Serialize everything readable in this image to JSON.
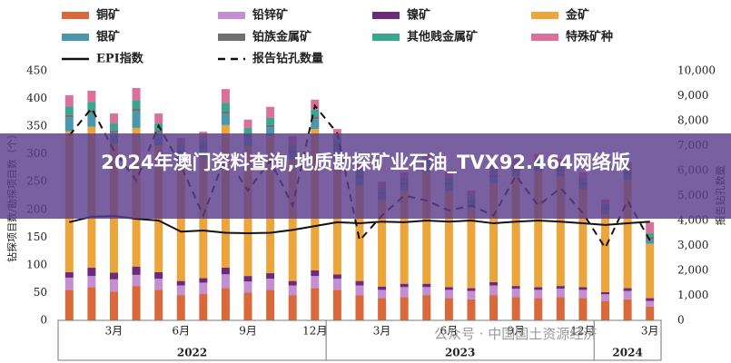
{
  "banner": "2024年澳门资料查询,地质勘探矿业石油_TVX92.464网络版",
  "watermark": "公众号 · 中国国土资源经济",
  "chart_data": {
    "type": "bar",
    "stacked": true,
    "ylabel": "钻探项目数/勘探项目数（个）",
    "y2label": "报告钻孔数量",
    "categories": [
      null,
      null,
      "3月",
      null,
      null,
      "6月",
      null,
      null,
      "9月",
      null,
      null,
      "12月",
      null,
      null,
      "3月",
      null,
      null,
      "6月",
      null,
      null,
      "9月",
      null,
      null,
      "12月",
      null,
      null,
      "3月"
    ],
    "x_groups": [
      {
        "label": "2022",
        "size": 12
      },
      {
        "label": "2023",
        "size": 12
      },
      {
        "label": "2024",
        "size": 3
      }
    ],
    "ylim": [
      0,
      450
    ],
    "yticks": [
      0,
      50,
      100,
      150,
      200,
      250,
      300,
      350,
      400,
      450
    ],
    "y2lim": [
      0,
      10000
    ],
    "y2ticks": [
      0,
      {
        "value": 1000,
        "label": "1,000"
      },
      {
        "value": 2000,
        "label": "2,000"
      },
      {
        "value": 3000,
        "label": "3,000"
      },
      {
        "value": 4000,
        "label": "4,000"
      },
      {
        "value": 5000,
        "label": "5,000"
      },
      {
        "value": 6000,
        "label": "6,000"
      },
      {
        "value": 7000,
        "label": "7,000"
      },
      {
        "value": 8000,
        "label": "8,000"
      },
      {
        "value": 9000,
        "label": "9,000"
      },
      {
        "value": 10000,
        "label": "10,000"
      }
    ],
    "series": [
      {
        "name": "铜矿",
        "kind": "bar",
        "color": "#d9683a",
        "values": [
          55,
          60,
          52,
          62,
          55,
          45,
          48,
          58,
          50,
          55,
          45,
          58,
          55,
          45,
          40,
          42,
          45,
          40,
          38,
          45,
          42,
          40,
          42,
          40,
          35,
          38,
          25
        ]
      },
      {
        "name": "铅锌矿",
        "kind": "bar",
        "color": "#c48fd2",
        "values": [
          22,
          20,
          22,
          20,
          20,
          18,
          20,
          25,
          20,
          20,
          18,
          22,
          20,
          18,
          15,
          18,
          15,
          15,
          15,
          18,
          15,
          15,
          15,
          15,
          12,
          15,
          10
        ]
      },
      {
        "name": "镍矿",
        "kind": "bar",
        "color": "#6b2a7c",
        "values": [
          10,
          15,
          12,
          15,
          12,
          8,
          8,
          12,
          10,
          10,
          8,
          10,
          8,
          8,
          6,
          6,
          6,
          5,
          5,
          6,
          5,
          5,
          5,
          5,
          4,
          5,
          5
        ]
      },
      {
        "name": "金矿",
        "kind": "bar",
        "color": "#eca53b",
        "values": [
          254,
          254,
          232,
          250,
          229,
          216,
          219,
          257,
          235,
          248,
          219,
          255,
          217,
          173,
          156,
          168,
          201,
          174,
          145,
          179,
          198,
          209,
          198,
          176,
          140,
          195,
          98
        ]
      },
      {
        "name": "银矿",
        "kind": "bar",
        "color": "#4a97ad",
        "values": [
          25,
          25,
          20,
          30,
          22,
          15,
          15,
          20,
          15,
          15,
          12,
          18,
          15,
          12,
          10,
          10,
          10,
          10,
          8,
          10,
          8,
          8,
          8,
          8,
          8,
          10,
          8
        ]
      },
      {
        "name": "铂族金属矿",
        "kind": "bar",
        "color": "#6f6f6f",
        "values": [
          5,
          5,
          5,
          5,
          5,
          5,
          5,
          5,
          5,
          5,
          5,
          5,
          5,
          5,
          5,
          5,
          5,
          5,
          5,
          5,
          5,
          5,
          5,
          5,
          5,
          5,
          5
        ]
      },
      {
        "name": "其他贱金属矿",
        "kind": "bar",
        "color": "#3aa68f",
        "values": [
          15,
          15,
          12,
          15,
          12,
          10,
          10,
          15,
          12,
          12,
          10,
          12,
          10,
          10,
          8,
          8,
          8,
          8,
          8,
          8,
          8,
          8,
          8,
          8,
          6,
          8,
          6
        ]
      },
      {
        "name": "特殊矿种",
        "kind": "bar",
        "color": "#d9719b",
        "values": [
          20,
          20,
          18,
          22,
          18,
          12,
          15,
          25,
          15,
          20,
          15,
          18,
          15,
          12,
          10,
          10,
          10,
          10,
          10,
          12,
          10,
          10,
          10,
          10,
          8,
          10,
          20
        ]
      },
      {
        "name": "EPI指数",
        "kind": "line",
        "color": "#111111",
        "style": "solid",
        "values": [
          177,
          187,
          188,
          183,
          180,
          160,
          162,
          158,
          157,
          158,
          163,
          170,
          177,
          175,
          178,
          177,
          180,
          178,
          180,
          175,
          178,
          180,
          178,
          175,
          172,
          175,
          178
        ]
      },
      {
        "name": "报告钻孔数量",
        "kind": "line",
        "color": "#111111",
        "style": "dashed",
        "axis": "y2",
        "values": [
          7400,
          8500,
          6800,
          5600,
          7800,
          6200,
          4200,
          6600,
          5200,
          6400,
          4600,
          8600,
          7500,
          3200,
          4200,
          5000,
          4800,
          4400,
          4600,
          4200,
          5800,
          4600,
          5300,
          4300,
          2900,
          4800,
          3200
        ]
      }
    ]
  }
}
